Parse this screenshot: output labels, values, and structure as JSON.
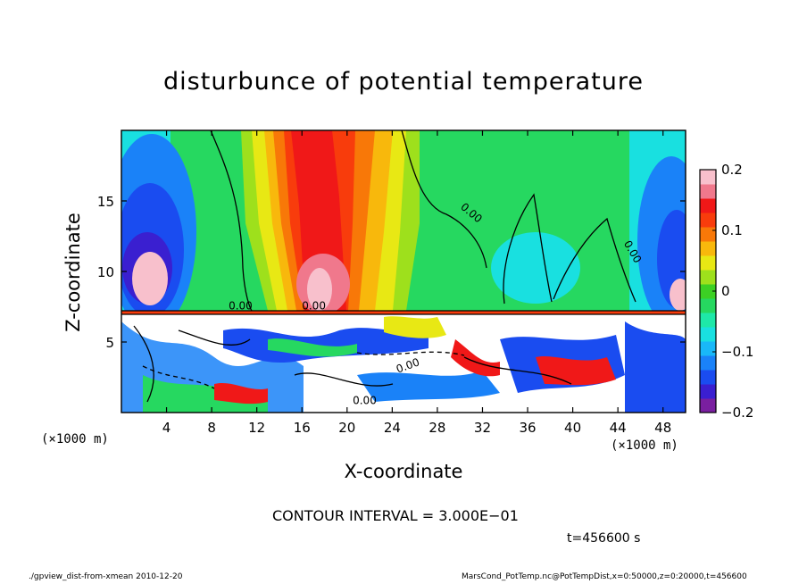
{
  "chart_data": {
    "type": "heatmap",
    "title": "disturbunce of potential temperature",
    "xlabel": "X-coordinate",
    "ylabel": "Z-coordinate",
    "x_unit": "(×1000 m)",
    "x_ticks": [
      4,
      8,
      12,
      16,
      20,
      24,
      28,
      32,
      36,
      40,
      44,
      48
    ],
    "y_ticks": [
      5,
      10,
      15
    ],
    "xlim": [
      0,
      50
    ],
    "ylim": [
      0,
      20
    ],
    "colorbar": {
      "ticks": [
        "0.2",
        "0.1",
        "0",
        "−0.1",
        "−0.2"
      ],
      "tick_values": [
        0.2,
        0.1,
        0,
        -0.1,
        -0.2
      ],
      "range": [
        -0.2,
        0.2
      ],
      "colors": [
        "#7a1fa0",
        "#3a1fd0",
        "#1a4cf0",
        "#1a82f8",
        "#19b8f8",
        "#19e0e0",
        "#1ee8a8",
        "#26d860",
        "#3cd024",
        "#9ee01c",
        "#e8e814",
        "#f8b80c",
        "#f87808",
        "#f83c0c",
        "#f01818",
        "#f0788c",
        "#f8c0cc"
      ]
    },
    "contour_labels": [
      "0.00"
    ],
    "grid": false
  },
  "annotations": {
    "contour_interval": "CONTOUR INTERVAL = 3.000E−01",
    "time": "t=456600 s"
  },
  "footer": {
    "left": "./gpview_dist-from-xmean  2010-12-20",
    "right": "MarsCond_PotTemp.nc@PotTempDist,x=0:50000,z=0:20000,t=456600"
  }
}
